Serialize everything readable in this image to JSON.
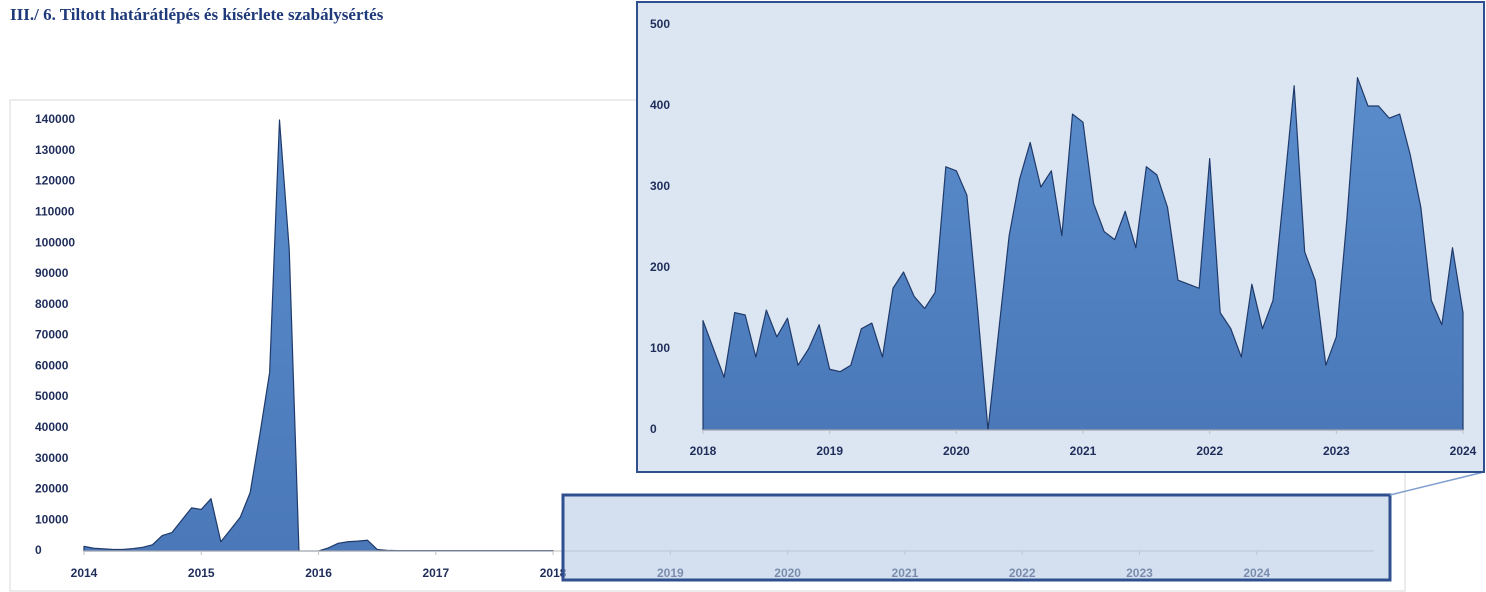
{
  "title": "III./ 6. Tiltott határátlépés és kísérlete szabálysértés",
  "chart_data": [
    {
      "type": "area",
      "color": "#4f81bd",
      "x": [
        2014,
        2014.083,
        2014.167,
        2014.25,
        2014.333,
        2014.417,
        2014.5,
        2014.583,
        2014.667,
        2014.75,
        2014.833,
        2014.917,
        2015,
        2015.083,
        2015.167,
        2015.25,
        2015.333,
        2015.417,
        2015.5,
        2015.583,
        2015.667,
        2015.75,
        2015.833,
        2015.917,
        2016,
        2016.083,
        2016.167,
        2016.25,
        2016.333,
        2016.417,
        2016.5,
        2016.583,
        2016.667,
        2016.75,
        2016.833,
        2016.917,
        2017,
        2017.083,
        2017.167,
        2017.25,
        2017.333,
        2017.417,
        2017.5,
        2017.583,
        2017.667,
        2017.75,
        2017.833,
        2017.917,
        2018
      ],
      "values": [
        1500,
        900,
        700,
        500,
        500,
        800,
        1200,
        2000,
        5000,
        6000,
        10000,
        14000,
        13500,
        17000,
        3000,
        7000,
        11000,
        19000,
        38000,
        58000,
        140000,
        98000,
        0,
        0,
        0,
        1000,
        2500,
        3000,
        3200,
        3500,
        500,
        200,
        150,
        150,
        150,
        150,
        150,
        150,
        150,
        150,
        150,
        150,
        150,
        150,
        150,
        150,
        150,
        150,
        130
      ],
      "xlim": [
        2014,
        2025
      ],
      "ylim": [
        0,
        140000
      ],
      "xticks": [
        2014,
        2015,
        2016,
        2017,
        2018,
        2019,
        2020,
        2021,
        2022,
        2023,
        2024
      ],
      "yticks": [
        0,
        10000,
        20000,
        30000,
        40000,
        50000,
        60000,
        70000,
        80000,
        90000,
        100000,
        110000,
        120000,
        130000,
        140000
      ]
    },
    {
      "type": "area",
      "color": "#4f81bd",
      "x": [
        2018,
        2018.083,
        2018.167,
        2018.25,
        2018.333,
        2018.417,
        2018.5,
        2018.583,
        2018.667,
        2018.75,
        2018.833,
        2018.917,
        2019,
        2019.083,
        2019.167,
        2019.25,
        2019.333,
        2019.417,
        2019.5,
        2019.583,
        2019.667,
        2019.75,
        2019.833,
        2019.917,
        2020,
        2020.083,
        2020.167,
        2020.25,
        2020.333,
        2020.417,
        2020.5,
        2020.583,
        2020.667,
        2020.75,
        2020.833,
        2020.917,
        2021,
        2021.083,
        2021.167,
        2021.25,
        2021.333,
        2021.417,
        2021.5,
        2021.583,
        2021.667,
        2021.75,
        2021.833,
        2021.917,
        2022,
        2022.083,
        2022.167,
        2022.25,
        2022.333,
        2022.417,
        2022.5,
        2022.583,
        2022.667,
        2022.75,
        2022.833,
        2022.917,
        2023,
        2023.083,
        2023.167,
        2023.25,
        2023.333,
        2023.417,
        2023.5,
        2023.583,
        2023.667,
        2023.75,
        2023.833,
        2023.917,
        2024
      ],
      "values": [
        135,
        100,
        65,
        145,
        142,
        90,
        148,
        115,
        138,
        80,
        100,
        130,
        75,
        72,
        80,
        125,
        132,
        90,
        175,
        195,
        165,
        150,
        170,
        325,
        320,
        290,
        150,
        0,
        120,
        240,
        310,
        355,
        300,
        320,
        240,
        390,
        380,
        280,
        245,
        235,
        270,
        225,
        325,
        315,
        275,
        185,
        180,
        175,
        335,
        145,
        125,
        90,
        180,
        125,
        160,
        290,
        425,
        220,
        185,
        80,
        115,
        260,
        435,
        400,
        400,
        385,
        390,
        340,
        275,
        160,
        130,
        225,
        145
      ],
      "xlim": [
        2018,
        2024
      ],
      "ylim": [
        0,
        500
      ],
      "xticks": [
        2018,
        2019,
        2020,
        2021,
        2022,
        2023,
        2024
      ],
      "yticks": [
        0,
        100,
        200,
        300,
        400,
        500
      ]
    }
  ]
}
